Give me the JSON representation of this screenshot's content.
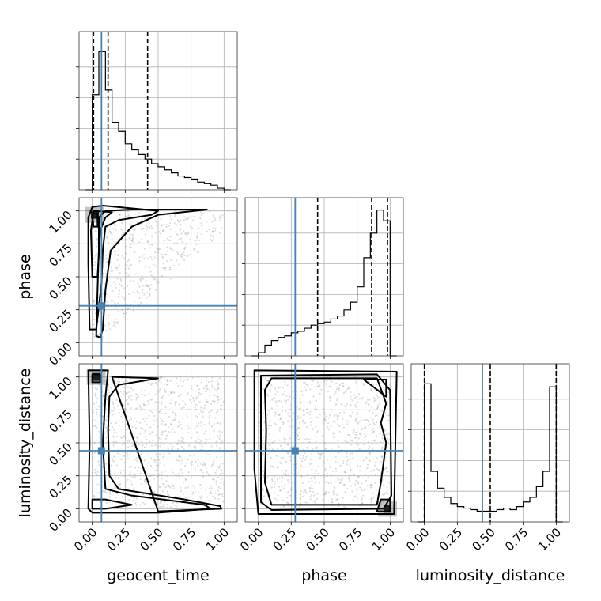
{
  "chart_data": {
    "type": "corner",
    "parameters": [
      "geocent_time",
      "phase",
      "luminosity_distance"
    ],
    "axis_labels": {
      "geocent_time": "geocent_time",
      "phase": "phase",
      "luminosity_distance": "luminosity_distance"
    },
    "range": [
      0,
      1
    ],
    "ticks": [
      0.0,
      0.25,
      0.5,
      0.75,
      1.0
    ],
    "tick_labels": [
      "0.00",
      "0.25",
      "0.50",
      "0.75",
      "1.00"
    ],
    "grid": true,
    "truths": {
      "geocent_time": 0.07,
      "phase": 0.28,
      "luminosity_distance": 0.44
    },
    "truth_color": "#4682b4",
    "histograms": {
      "geocent_time": {
        "bin_edges": [
          -0.05,
          0.0,
          0.05,
          0.1,
          0.15,
          0.2,
          0.25,
          0.3,
          0.35,
          0.4,
          0.45,
          0.5,
          0.55,
          0.6,
          0.65,
          0.7,
          0.75,
          0.8,
          0.85,
          0.9,
          0.95,
          1.0,
          1.05
        ],
        "counts": [
          0,
          0.62,
          0.9,
          0.65,
          0.44,
          0.38,
          0.3,
          0.26,
          0.23,
          0.2,
          0.17,
          0.15,
          0.13,
          0.11,
          0.09,
          0.08,
          0.07,
          0.05,
          0.04,
          0.03,
          0.01,
          0
        ],
        "quantiles": [
          0.01,
          0.12,
          0.42
        ]
      },
      "phase": {
        "bin_edges": [
          -0.05,
          0.0,
          0.05,
          0.1,
          0.15,
          0.2,
          0.25,
          0.3,
          0.35,
          0.4,
          0.45,
          0.5,
          0.55,
          0.6,
          0.65,
          0.7,
          0.75,
          0.8,
          0.85,
          0.9,
          0.95,
          1.0,
          1.05
        ],
        "counts": [
          0,
          0.02,
          0.07,
          0.1,
          0.12,
          0.13,
          0.15,
          0.16,
          0.18,
          0.2,
          0.21,
          0.22,
          0.24,
          0.26,
          0.3,
          0.35,
          0.45,
          0.64,
          0.8,
          0.95,
          0.88,
          0
        ],
        "quantiles": [
          0.45,
          0.86,
          0.98
        ]
      },
      "luminosity_distance": {
        "bin_edges": [
          -0.05,
          0.0,
          0.05,
          0.1,
          0.15,
          0.2,
          0.25,
          0.3,
          0.35,
          0.4,
          0.45,
          0.5,
          0.55,
          0.6,
          0.65,
          0.7,
          0.75,
          0.8,
          0.85,
          0.9,
          0.95,
          1.0,
          1.05
        ],
        "counts": [
          0,
          0.9,
          0.33,
          0.22,
          0.16,
          0.12,
          0.1,
          0.09,
          0.08,
          0.07,
          0.07,
          0.07,
          0.08,
          0.09,
          0.08,
          0.1,
          0.13,
          0.16,
          0.23,
          0.33,
          0.88,
          0
        ],
        "quantiles": [
          0.0,
          0.5,
          1.0
        ]
      }
    },
    "pairs": [
      {
        "x": "geocent_time",
        "y": "phase",
        "contours": [
          [
            [
              0.0,
              1.03
            ],
            [
              0.08,
              1.04
            ],
            [
              0.5,
              1.0
            ],
            [
              0.45,
              0.97
            ],
            [
              0.2,
              0.93
            ],
            [
              0.1,
              0.88
            ],
            [
              0.08,
              0.7
            ],
            [
              0.07,
              0.45
            ],
            [
              0.03,
              0.1
            ],
            [
              -0.02,
              0.1
            ],
            [
              -0.03,
              0.6
            ],
            [
              -0.03,
              0.95
            ]
          ],
          [
            [
              0.01,
              1.0
            ],
            [
              0.15,
              0.99
            ],
            [
              0.1,
              0.95
            ],
            [
              0.06,
              0.85
            ],
            [
              0.04,
              0.5
            ],
            [
              0.0,
              0.5
            ],
            [
              -0.01,
              0.85
            ]
          ],
          [
            [
              0.0,
              0.98
            ],
            [
              0.04,
              0.98
            ],
            [
              0.04,
              0.88
            ],
            [
              0.01,
              0.88
            ]
          ],
          [
            [
              0.1,
              1.0
            ],
            [
              0.3,
              1.01
            ],
            [
              0.87,
              1.01
            ],
            [
              0.5,
              0.97
            ],
            [
              0.3,
              0.88
            ],
            [
              0.14,
              0.7
            ],
            [
              0.1,
              0.4
            ],
            [
              0.08,
              0.1
            ],
            [
              0.06,
              0.04
            ],
            [
              0.03,
              0.05
            ],
            [
              0.04,
              0.4
            ],
            [
              0.05,
              0.7
            ],
            [
              0.05,
              0.95
            ]
          ]
        ],
        "density_peak": [
          0.02,
          0.97
        ]
      },
      {
        "x": "geocent_time",
        "y": "luminosity_distance",
        "contours": [
          [
            [
              -0.03,
              1.05
            ],
            [
              0.12,
              1.05
            ],
            [
              0.1,
              0.85
            ],
            [
              0.08,
              0.5
            ],
            [
              0.1,
              0.15
            ],
            [
              0.3,
              0.1
            ],
            [
              0.85,
              0.03
            ],
            [
              0.9,
              0.0
            ],
            [
              0.5,
              -0.03
            ],
            [
              0.0,
              -0.03
            ],
            [
              -0.03,
              0.0
            ],
            [
              -0.02,
              0.5
            ]
          ],
          [
            [
              0.15,
              1.0
            ],
            [
              0.5,
              0.99
            ],
            [
              0.2,
              0.94
            ],
            [
              0.13,
              0.85
            ],
            [
              0.12,
              0.6
            ],
            [
              0.13,
              0.25
            ],
            [
              0.2,
              0.15
            ],
            [
              0.7,
              0.07
            ],
            [
              0.97,
              0.02
            ],
            [
              0.98,
              0.0
            ],
            [
              0.5,
              -0.02
            ]
          ],
          [
            [
              0.0,
              1.02
            ],
            [
              0.06,
              1.02
            ],
            [
              0.06,
              0.96
            ],
            [
              0.0,
              0.96
            ]
          ],
          [
            [
              0.0,
              0.07
            ],
            [
              0.1,
              0.07
            ],
            [
              0.3,
              0.03
            ],
            [
              0.1,
              0.0
            ],
            [
              0.0,
              0.0
            ]
          ]
        ],
        "density_peak": [
          0.03,
          1.0
        ]
      },
      {
        "x": "phase",
        "y": "luminosity_distance",
        "contours": [
          [
            [
              -0.03,
              1.05
            ],
            [
              1.05,
              1.04
            ],
            [
              1.04,
              0.5
            ],
            [
              1.03,
              -0.04
            ],
            [
              0.0,
              -0.04
            ],
            [
              -0.03,
              0.3
            ]
          ],
          [
            [
              0.02,
              1.01
            ],
            [
              0.9,
              1.02
            ],
            [
              1.0,
              0.9
            ],
            [
              1.01,
              0.1
            ],
            [
              0.95,
              0.0
            ],
            [
              0.1,
              -0.01
            ],
            [
              0.02,
              0.05
            ]
          ],
          [
            [
              0.1,
              0.99
            ],
            [
              0.9,
              0.99
            ],
            [
              0.97,
              0.8
            ],
            [
              0.93,
              0.65
            ],
            [
              0.97,
              0.5
            ],
            [
              0.93,
              0.2
            ],
            [
              0.9,
              0.03
            ],
            [
              0.1,
              0.03
            ],
            [
              0.05,
              0.2
            ],
            [
              0.06,
              0.6
            ],
            [
              0.05,
              0.9
            ]
          ],
          [
            [
              0.8,
              0.98
            ],
            [
              0.97,
              0.98
            ],
            [
              0.97,
              0.85
            ]
          ],
          [
            [
              0.93,
              0.07
            ],
            [
              1.0,
              0.07
            ],
            [
              1.0,
              -0.02
            ],
            [
              0.9,
              -0.02
            ]
          ]
        ],
        "density_peak": [
          0.98,
          0.0
        ]
      }
    ]
  }
}
